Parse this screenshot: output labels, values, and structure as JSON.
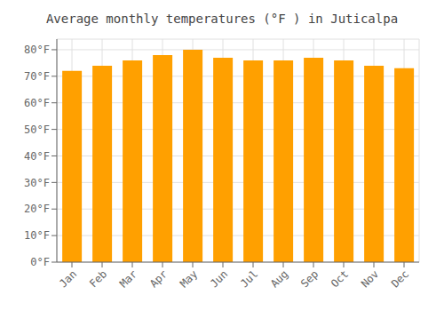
{
  "chart_data": {
    "type": "bar",
    "title": "Average monthly temperatures (°F ) in Juticalpa",
    "categories": [
      "Jan",
      "Feb",
      "Mar",
      "Apr",
      "May",
      "Jun",
      "Jul",
      "Aug",
      "Sep",
      "Oct",
      "Nov",
      "Dec"
    ],
    "values": [
      72,
      74,
      76,
      78,
      80,
      77,
      76,
      76,
      77,
      76,
      74,
      73
    ],
    "color": "#FFA000",
    "ylim": [
      0,
      84
    ],
    "yticks": [
      {
        "value": 0,
        "label": "0°F"
      },
      {
        "value": 10,
        "label": "10°F"
      },
      {
        "value": 20,
        "label": "20°F"
      },
      {
        "value": 30,
        "label": "30°F"
      },
      {
        "value": 40,
        "label": "40°F"
      },
      {
        "value": 50,
        "label": "50°F"
      },
      {
        "value": 60,
        "label": "60°F"
      },
      {
        "value": 70,
        "label": "70°F"
      },
      {
        "value": 80,
        "label": "80°F"
      }
    ],
    "grid": true
  }
}
